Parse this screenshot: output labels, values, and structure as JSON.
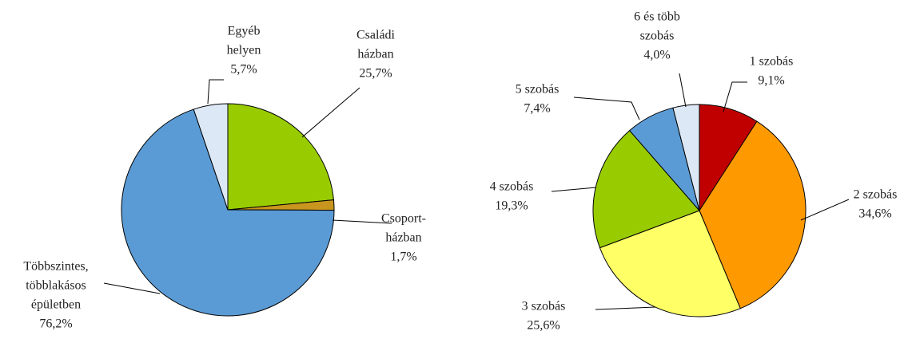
{
  "chart_data": [
    {
      "type": "pie",
      "categories": [
        [
          "Családi",
          "házban"
        ],
        [
          "Csoport-",
          "házban"
        ],
        [
          "Többszintes,",
          "többlakásos",
          "épületben"
        ],
        [
          "Egyéb",
          "helyen"
        ]
      ],
      "values": [
        25.7,
        1.7,
        76.2,
        5.7
      ],
      "value_labels": [
        "25,7%",
        "1,7%",
        "76,2%",
        "5,7%"
      ],
      "colors": [
        "#99cc00",
        "#c8961e",
        "#5b9bd5",
        "#dde8f6"
      ]
    },
    {
      "type": "pie",
      "categories": [
        [
          "1 szobás"
        ],
        [
          "2 szobás"
        ],
        [
          "3 szobás"
        ],
        [
          "4 szobás"
        ],
        [
          "5 szobás"
        ],
        [
          "6 és több",
          "szobás"
        ]
      ],
      "values": [
        9.1,
        34.6,
        25.6,
        19.3,
        7.4,
        4.0
      ],
      "value_labels": [
        "9,1%",
        "34,6%",
        "25,6%",
        "19,3%",
        "7,4%",
        "4,0%"
      ],
      "colors": [
        "#c00000",
        "#ff9900",
        "#ffff66",
        "#99cc00",
        "#5b9bd5",
        "#dde8f6"
      ]
    }
  ]
}
